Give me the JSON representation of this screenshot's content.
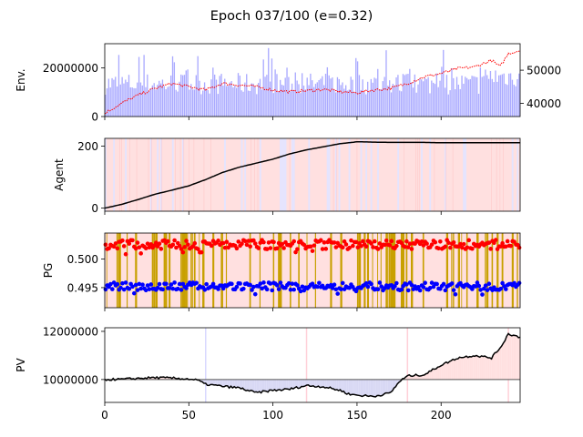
{
  "chart_data": {
    "title": "Epoch 037/100 (e=0.32)",
    "type": "line",
    "x_range": [
      0,
      247
    ],
    "x_ticks": [
      "0",
      "50",
      "100",
      "150",
      "200"
    ],
    "panels": [
      {
        "id": "env",
        "ylabel": "Env.",
        "type": "bar+line",
        "ylim_left": [
          0,
          30000000
        ],
        "yticks_left": [
          "0",
          "20000000"
        ],
        "ylim_right": [
          36000,
          58000
        ],
        "yticks_right": [
          "40000",
          "50000"
        ],
        "volume_color": "#aaaaff",
        "price_color": "#ff0000",
        "price_keypoints": [
          [
            0,
            37000
          ],
          [
            10,
            40000
          ],
          [
            20,
            42500
          ],
          [
            30,
            44500
          ],
          [
            40,
            46000
          ],
          [
            50,
            45000
          ],
          [
            60,
            44000
          ],
          [
            70,
            46000
          ],
          [
            80,
            45500
          ],
          [
            90,
            45000
          ],
          [
            100,
            44000
          ],
          [
            110,
            43500
          ],
          [
            120,
            43800
          ],
          [
            130,
            44200
          ],
          [
            140,
            43500
          ],
          [
            150,
            43200
          ],
          [
            160,
            44000
          ],
          [
            170,
            44500
          ],
          [
            180,
            46000
          ],
          [
            190,
            48000
          ],
          [
            200,
            49000
          ],
          [
            210,
            50500
          ],
          [
            220,
            51000
          ],
          [
            230,
            53000
          ],
          [
            235,
            51000
          ],
          [
            240,
            55000
          ],
          [
            247,
            56000
          ]
        ]
      },
      {
        "id": "agent",
        "ylabel": "Agent",
        "type": "line",
        "ylim": [
          -10,
          225
        ],
        "yticks": [
          "0",
          "200"
        ],
        "line_color": "#000000",
        "line_keypoints": [
          [
            0,
            0
          ],
          [
            10,
            12
          ],
          [
            20,
            28
          ],
          [
            30,
            45
          ],
          [
            40,
            58
          ],
          [
            50,
            72
          ],
          [
            60,
            92
          ],
          [
            70,
            115
          ],
          [
            80,
            132
          ],
          [
            90,
            145
          ],
          [
            100,
            158
          ],
          [
            110,
            175
          ],
          [
            120,
            188
          ],
          [
            130,
            198
          ],
          [
            140,
            208
          ],
          [
            150,
            214
          ],
          [
            160,
            213
          ],
          [
            170,
            212
          ],
          [
            180,
            212
          ],
          [
            190,
            212
          ],
          [
            200,
            211
          ],
          [
            247,
            211
          ]
        ],
        "background_color": "#ffe0e0",
        "highlight_color": "#e4e4ff"
      },
      {
        "id": "pg",
        "ylabel": "PG",
        "type": "scatter",
        "ylim": [
          0.4915,
          0.5045
        ],
        "yticks": [
          "0.495",
          "0.500"
        ],
        "red_mean": 0.5025,
        "blue_mean": 0.4952,
        "red_color": "#ff0000",
        "blue_color": "#0000ff",
        "band_color": "#c8a000"
      },
      {
        "id": "pv",
        "ylabel": "PV",
        "type": "line",
        "ylim": [
          9050000,
          12150000
        ],
        "yticks": [
          "10000000",
          "12000000"
        ],
        "baseline": 10000000,
        "line_keypoints": [
          [
            0,
            10000000
          ],
          [
            10,
            10010000
          ],
          [
            20,
            10050000
          ],
          [
            30,
            10080000
          ],
          [
            40,
            10060000
          ],
          [
            50,
            10020000
          ],
          [
            55,
            9980000
          ],
          [
            60,
            9800000
          ],
          [
            70,
            9720000
          ],
          [
            80,
            9650000
          ],
          [
            90,
            9450000
          ],
          [
            100,
            9550000
          ],
          [
            110,
            9600000
          ],
          [
            120,
            9750000
          ],
          [
            130,
            9700000
          ],
          [
            140,
            9550000
          ],
          [
            145,
            9400000
          ],
          [
            150,
            9350000
          ],
          [
            160,
            9300000
          ],
          [
            170,
            9450000
          ],
          [
            175,
            9900000
          ],
          [
            180,
            10150000
          ],
          [
            190,
            10200000
          ],
          [
            200,
            10600000
          ],
          [
            210,
            10900000
          ],
          [
            220,
            11000000
          ],
          [
            230,
            10900000
          ],
          [
            236,
            11400000
          ],
          [
            240,
            11900000
          ],
          [
            247,
            11750000
          ]
        ],
        "gain_fill": "#ffe0e0",
        "loss_fill": "#d8d8f4",
        "markers": [
          {
            "x": 60,
            "color": "#d8d8ff"
          },
          {
            "x": 120,
            "color": "#ffd0d8"
          },
          {
            "x": 180,
            "color": "#ffd0d8"
          },
          {
            "x": 240,
            "color": "#ffd0d8"
          }
        ]
      }
    ]
  }
}
